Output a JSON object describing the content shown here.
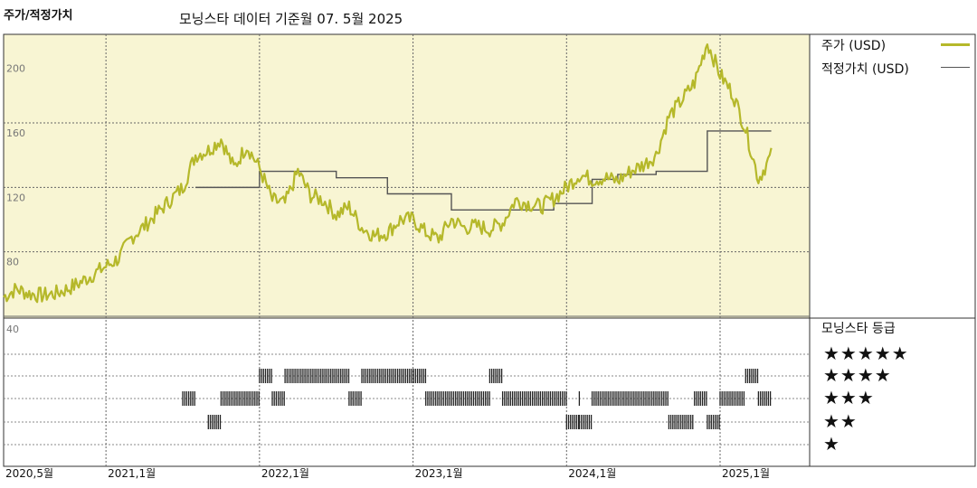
{
  "header": {
    "title": "주가/적정가치",
    "subtitle": "모닝스타 데이터 기준월 07. 5월 2025"
  },
  "legend": {
    "price_label": "주가 (USD)",
    "fair_label": "적정가치 (USD)",
    "price_color": "#b5b82a",
    "fair_color": "#555555",
    "stars_title": "모닝스타 등급"
  },
  "star_labels": [
    "★★★★★",
    "★★★★",
    "★★★",
    "★★",
    "★"
  ],
  "chart_data": {
    "type": "line",
    "title": "주가/적정가치",
    "subtitle": "모닝스타 데이터 기준월 07. 5월 2025",
    "ylim": [
      40,
      215
    ],
    "y_ticks": [
      40,
      80,
      120,
      160,
      200
    ],
    "x_ticks": [
      "2020,5월",
      "2021,1월",
      "2022,1월",
      "2023,1월",
      "2024,1월",
      "2025,1월"
    ],
    "x_tick_dates": [
      "2020-05",
      "2021-01",
      "2022-01",
      "2023-01",
      "2024-01",
      "2025-01"
    ],
    "xlim": [
      "2020-05",
      "2025-08"
    ],
    "grid": true,
    "legend_position": "right",
    "series": [
      {
        "name": "주가 (USD)",
        "color": "#b5b82a",
        "x": [
          "2020-05",
          "2020-06",
          "2020-07",
          "2020-08",
          "2020-09",
          "2020-10",
          "2020-11",
          "2020-12",
          "2021-01",
          "2021-02",
          "2021-03",
          "2021-04",
          "2021-05",
          "2021-06",
          "2021-07",
          "2021-08",
          "2021-09",
          "2021-10",
          "2021-11",
          "2021-12",
          "2022-01",
          "2022-02",
          "2022-03",
          "2022-04",
          "2022-05",
          "2022-06",
          "2022-07",
          "2022-08",
          "2022-09",
          "2022-10",
          "2022-11",
          "2022-12",
          "2023-01",
          "2023-02",
          "2023-03",
          "2023-04",
          "2023-05",
          "2023-06",
          "2023-07",
          "2023-08",
          "2023-09",
          "2023-10",
          "2023-11",
          "2023-12",
          "2024-01",
          "2024-02",
          "2024-03",
          "2024-04",
          "2024-05",
          "2024-06",
          "2024-07",
          "2024-08",
          "2024-09",
          "2024-10",
          "2024-11",
          "2024-12",
          "2025-01",
          "2025-02",
          "2025-03",
          "2025-04",
          "2025-05"
        ],
        "y": [
          52,
          57,
          54,
          53,
          54,
          57,
          61,
          66,
          71,
          76,
          89,
          96,
          104,
          112,
          120,
          140,
          143,
          150,
          132,
          146,
          132,
          112,
          110,
          130,
          115,
          112,
          103,
          108,
          95,
          90,
          92,
          100,
          100,
          92,
          88,
          100,
          95,
          96,
          94,
          98,
          112,
          110,
          108,
          113,
          120,
          128,
          125,
          126,
          124,
          130,
          134,
          140,
          164,
          174,
          185,
          210,
          190,
          178,
          156,
          125,
          140
        ]
      },
      {
        "name": "적정가치 (USD)",
        "color": "#555555",
        "step": true,
        "x": [
          "2021-08",
          "2022-01",
          "2022-07",
          "2022-11",
          "2023-04",
          "2023-12",
          "2024-03",
          "2024-05",
          "2024-08",
          "2024-12",
          "2025-05"
        ],
        "y": [
          120,
          130,
          126,
          116,
          106,
          110,
          125,
          128,
          130,
          155,
          155
        ]
      }
    ],
    "rating_rows": [
      5,
      4,
      3,
      2,
      1
    ],
    "ratings": [
      {
        "start": "2021-09",
        "end": "2021-10",
        "stars": 2
      },
      {
        "start": "2021-07",
        "end": "2021-08",
        "stars": 3
      },
      {
        "start": "2021-10",
        "end": "2022-01",
        "stars": 3
      },
      {
        "start": "2022-01",
        "end": "2022-02",
        "stars": 4
      },
      {
        "start": "2022-02",
        "end": "2022-03",
        "stars": 3
      },
      {
        "start": "2022-03",
        "end": "2022-08",
        "stars": 4
      },
      {
        "start": "2022-08",
        "end": "2022-09",
        "stars": 3
      },
      {
        "start": "2022-09",
        "end": "2023-02",
        "stars": 4
      },
      {
        "start": "2023-02",
        "end": "2023-07",
        "stars": 3
      },
      {
        "start": "2023-07",
        "end": "2023-08",
        "stars": 4
      },
      {
        "start": "2023-08",
        "end": "2024-01",
        "stars": 3
      },
      {
        "start": "2024-01",
        "end": "2024-02",
        "stars": 2
      },
      {
        "start": "2024-02",
        "end": "2024-02",
        "stars": 3
      },
      {
        "start": "2024-02",
        "end": "2024-03",
        "stars": 2
      },
      {
        "start": "2024-03",
        "end": "2024-09",
        "stars": 3
      },
      {
        "start": "2024-09",
        "end": "2024-11",
        "stars": 2
      },
      {
        "start": "2024-11",
        "end": "2024-12",
        "stars": 3
      },
      {
        "start": "2024-12",
        "end": "2025-01",
        "stars": 2
      },
      {
        "start": "2025-01",
        "end": "2025-03",
        "stars": 3
      },
      {
        "start": "2025-03",
        "end": "2025-04",
        "stars": 4
      },
      {
        "start": "2025-04",
        "end": "2025-05",
        "stars": 3
      }
    ]
  }
}
